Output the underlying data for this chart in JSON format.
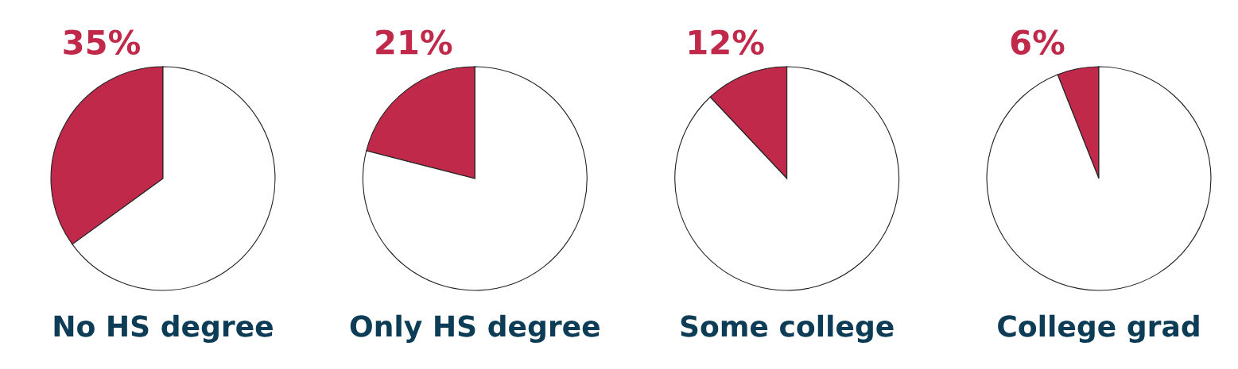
{
  "chart_data": [
    {
      "type": "pie",
      "title": "No HS degree",
      "categories": [
        null,
        null
      ],
      "values": [
        35,
        65
      ],
      "colors": [
        "#c0294a",
        "#ffffff"
      ],
      "value_labels": [
        "35%",
        null
      ]
    },
    {
      "type": "pie",
      "title": "Only HS degree",
      "categories": [
        null,
        null
      ],
      "values": [
        21,
        79
      ],
      "colors": [
        "#c0294a",
        "#ffffff"
      ],
      "value_labels": [
        "21%",
        null
      ]
    },
    {
      "type": "pie",
      "title": "Some college",
      "categories": [
        null,
        null
      ],
      "values": [
        12,
        88
      ],
      "colors": [
        "#c0294a",
        "#ffffff"
      ],
      "value_labels": [
        "12%",
        null
      ]
    },
    {
      "type": "pie",
      "title": "College grad",
      "categories": [
        null,
        null
      ],
      "values": [
        6,
        94
      ],
      "colors": [
        "#c0294a",
        "#ffffff"
      ],
      "value_labels": [
        "6%",
        null
      ]
    }
  ]
}
